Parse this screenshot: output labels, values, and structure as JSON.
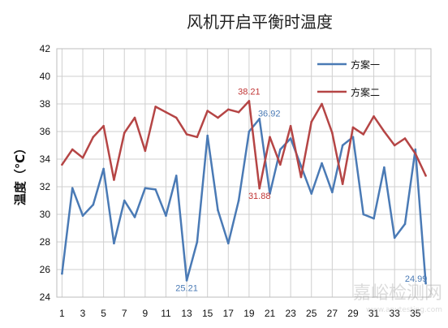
{
  "chart_data": {
    "type": "line",
    "title": "风机开启平衡时温度",
    "xlabel": "",
    "ylabel": "温度（℃）",
    "ylim": [
      24,
      42
    ],
    "yticks": [
      "24",
      "26",
      "28",
      "30",
      "32",
      "34",
      "36",
      "38",
      "40",
      "42"
    ],
    "x": [
      1,
      2,
      3,
      4,
      5,
      6,
      7,
      8,
      9,
      10,
      11,
      12,
      13,
      14,
      15,
      16,
      17,
      18,
      19,
      20,
      21,
      22,
      23,
      24,
      25,
      26,
      27,
      28,
      29,
      30,
      31,
      32,
      33,
      34,
      35,
      36
    ],
    "xticks": [
      "1",
      "3",
      "5",
      "7",
      "9",
      "11",
      "13",
      "15",
      "17",
      "19",
      "21",
      "23",
      "25",
      "27",
      "29",
      "31",
      "33",
      "35"
    ],
    "grid": true,
    "legend_position": "top-right",
    "series": [
      {
        "name": "方案一",
        "color": "#4a7ab5",
        "values": [
          25.7,
          31.9,
          29.9,
          30.7,
          33.3,
          27.9,
          31.0,
          29.8,
          31.9,
          31.8,
          29.9,
          32.8,
          25.21,
          28.0,
          35.7,
          30.3,
          27.9,
          31.0,
          36.0,
          36.92,
          31.5,
          34.7,
          35.5,
          33.5,
          31.5,
          33.7,
          31.6,
          35.0,
          35.6,
          30.0,
          29.7,
          33.4,
          28.3,
          29.3,
          34.7,
          24.99
        ]
      },
      {
        "name": "方案二",
        "color": "#b54545",
        "values": [
          33.6,
          34.7,
          34.1,
          35.6,
          36.4,
          32.5,
          35.9,
          37.0,
          34.6,
          37.8,
          37.4,
          37.0,
          35.8,
          35.6,
          37.5,
          37.0,
          37.6,
          37.4,
          38.21,
          31.88,
          35.6,
          33.6,
          36.4,
          32.7,
          36.7,
          38.0,
          35.9,
          32.2,
          36.3,
          35.8,
          37.1,
          36.0,
          35.0,
          35.5,
          34.4,
          32.8
        ]
      }
    ],
    "annotations": [
      {
        "text": "38.21",
        "x": 19,
        "y": 38.21,
        "series": 1
      },
      {
        "text": "36.92",
        "x": 20,
        "y": 36.92,
        "series": 0
      },
      {
        "text": "31.88",
        "x": 20,
        "y": 31.88,
        "series": 1
      },
      {
        "text": "25.21",
        "x": 13,
        "y": 25.21,
        "series": 0
      },
      {
        "text": "24.99",
        "x": 36,
        "y": 24.99,
        "series": 0
      }
    ]
  },
  "watermark": {
    "text": "嘉峪检测网",
    "url": "www.anytesting.com"
  }
}
